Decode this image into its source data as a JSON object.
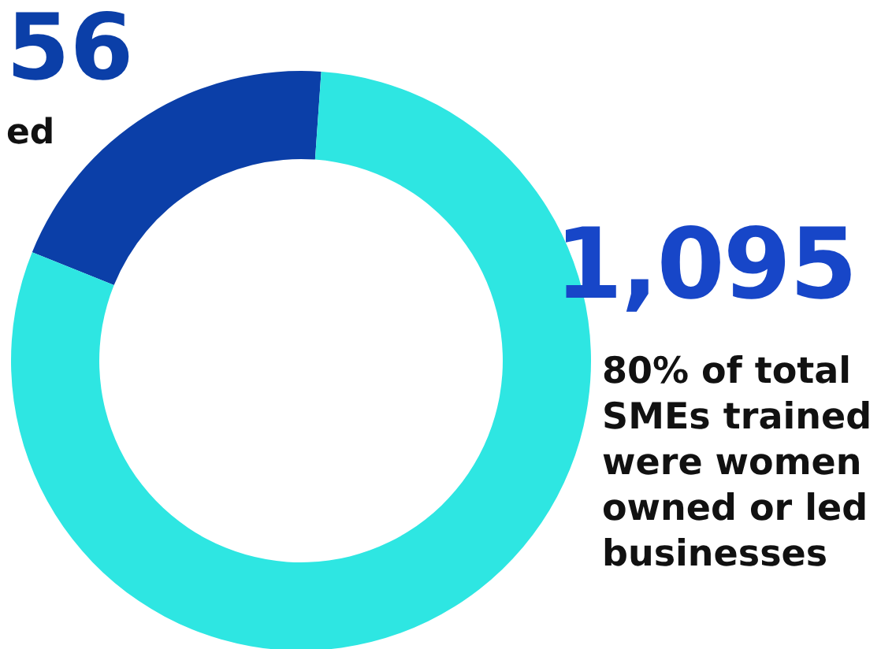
{
  "chart_data": {
    "type": "donut",
    "categories": [
      null,
      null
    ],
    "values": [
      20,
      80
    ],
    "colors": [
      "#0b3fa8",
      "#2ee6e2"
    ],
    "annotations": [
      "56",
      "ed",
      "1,095",
      "80% of total SMEs trained were women owned or led businesses"
    ]
  }
}
